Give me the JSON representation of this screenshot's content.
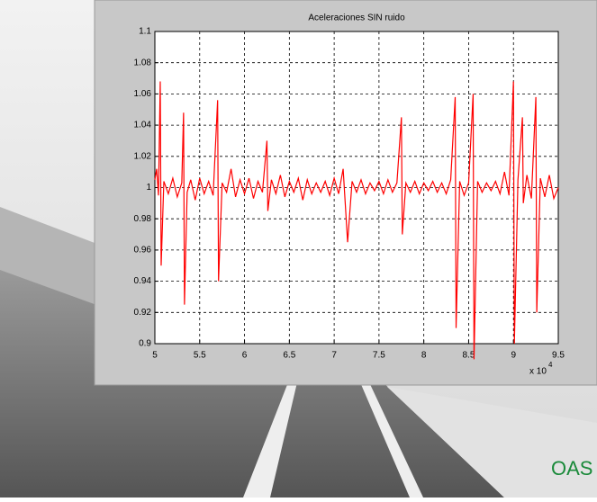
{
  "chart_data": {
    "type": "line",
    "title": "Aceleraciones SIN ruido",
    "color": "#ff0000",
    "grid": true,
    "xlim": [
      5,
      9.5
    ],
    "xticks": [
      5,
      5.5,
      6,
      6.5,
      7,
      7.5,
      8,
      8.5,
      9,
      9.5
    ],
    "x_scale_label": "x 10",
    "x_scale_exponent": "4",
    "ylim": [
      0.9,
      1.1
    ],
    "yticks": [
      0.9,
      0.92,
      0.94,
      0.96,
      0.98,
      1,
      1.02,
      1.04,
      1.06,
      1.08,
      1.1
    ],
    "x": [
      5.0,
      5.02,
      5.04,
      5.06,
      5.07,
      5.1,
      5.15,
      5.2,
      5.25,
      5.3,
      5.32,
      5.33,
      5.36,
      5.4,
      5.45,
      5.5,
      5.55,
      5.6,
      5.65,
      5.7,
      5.71,
      5.75,
      5.8,
      5.85,
      5.9,
      5.95,
      6.0,
      6.05,
      6.1,
      6.15,
      6.2,
      6.25,
      6.26,
      6.3,
      6.35,
      6.4,
      6.45,
      6.5,
      6.55,
      6.6,
      6.65,
      6.7,
      6.75,
      6.8,
      6.85,
      6.9,
      6.95,
      7.0,
      7.05,
      7.1,
      7.15,
      7.2,
      7.25,
      7.3,
      7.35,
      7.4,
      7.45,
      7.5,
      7.55,
      7.6,
      7.65,
      7.7,
      7.75,
      7.76,
      7.8,
      7.85,
      7.9,
      7.95,
      8.0,
      8.05,
      8.1,
      8.15,
      8.2,
      8.25,
      8.3,
      8.35,
      8.36,
      8.4,
      8.45,
      8.5,
      8.55,
      8.56,
      8.6,
      8.65,
      8.7,
      8.75,
      8.8,
      8.85,
      8.9,
      8.95,
      9.0,
      9.01,
      9.05,
      9.1,
      9.11,
      9.15,
      9.2,
      9.25,
      9.26,
      9.3,
      9.35,
      9.4,
      9.45,
      9.5
    ],
    "values": [
      1.005,
      1.012,
      0.995,
      1.068,
      0.95,
      1.004,
      0.996,
      1.006,
      0.994,
      1.003,
      1.048,
      0.925,
      0.997,
      1.005,
      0.992,
      1.006,
      0.996,
      1.004,
      0.995,
      1.056,
      0.94,
      1.003,
      0.997,
      1.012,
      0.994,
      1.005,
      0.996,
      1.006,
      0.993,
      1.004,
      0.997,
      1.03,
      0.985,
      1.005,
      0.996,
      1.008,
      0.994,
      1.004,
      0.997,
      1.006,
      0.992,
      1.005,
      0.996,
      1.003,
      0.997,
      1.004,
      0.995,
      1.006,
      0.996,
      1.012,
      0.965,
      1.004,
      0.997,
      1.005,
      0.996,
      1.003,
      0.998,
      1.004,
      0.996,
      1.005,
      0.997,
      1.003,
      1.045,
      0.97,
      1.003,
      0.997,
      1.004,
      0.996,
      1.003,
      0.998,
      1.004,
      0.997,
      1.003,
      0.996,
      1.005,
      1.058,
      0.91,
      1.004,
      0.995,
      1.003,
      1.06,
      0.89,
      1.004,
      0.997,
      1.003,
      0.998,
      1.004,
      0.996,
      1.01,
      0.995,
      1.068,
      0.9,
      1.005,
      1.045,
      0.99,
      1.008,
      0.993,
      1.058,
      0.92,
      1.006,
      0.994,
      1.008,
      0.993,
      1.0
    ]
  },
  "slide_text": "OAS"
}
